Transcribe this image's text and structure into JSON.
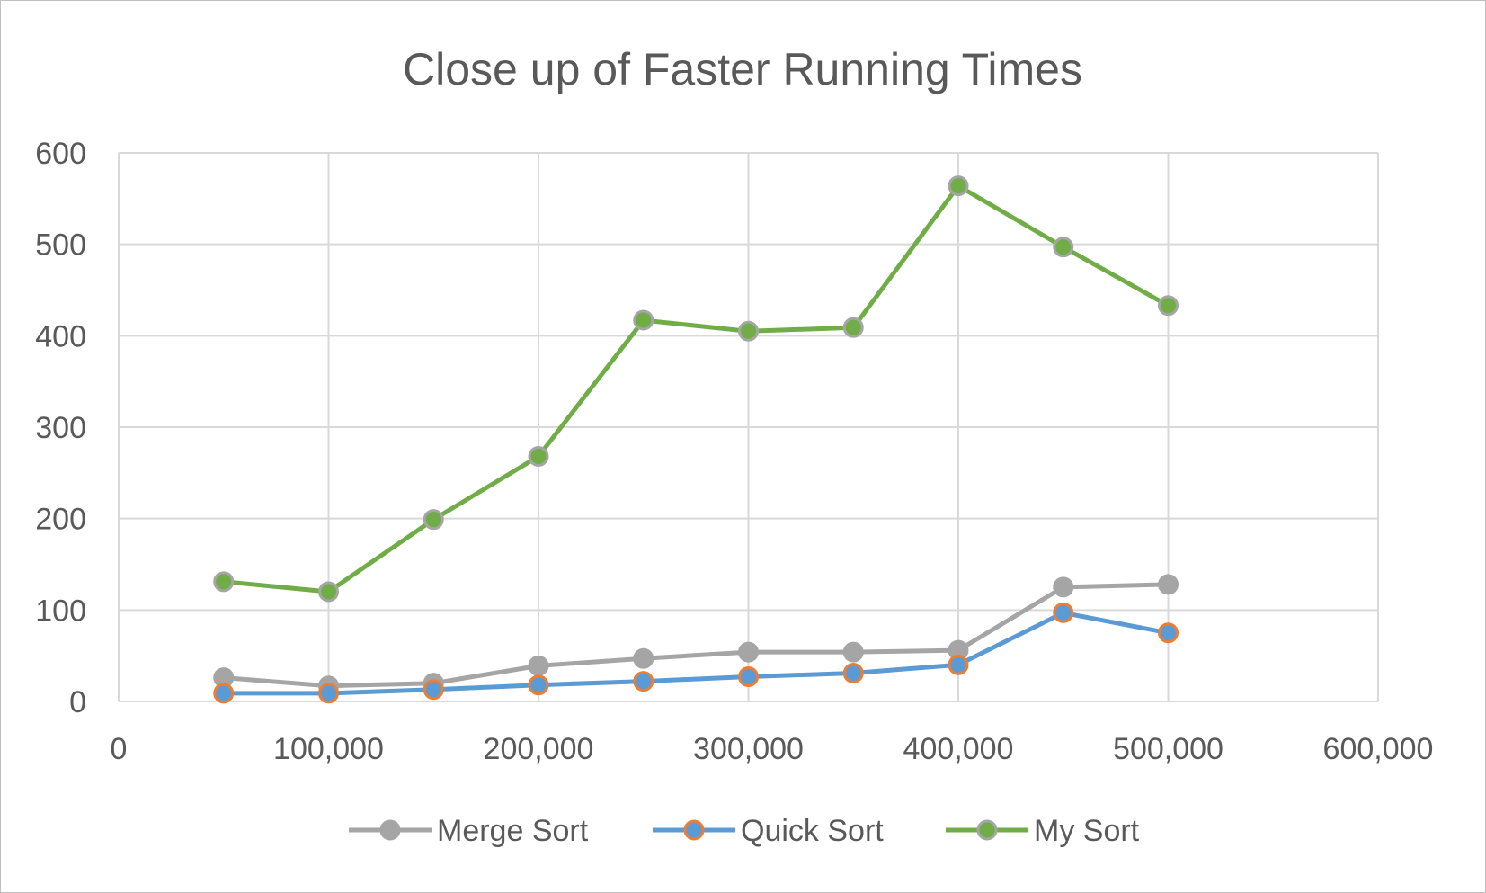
{
  "chart_data": {
    "type": "line",
    "title": "Close up of Faster Running Times",
    "xlabel": "",
    "ylabel": "",
    "xlim": [
      0,
      600000
    ],
    "ylim": [
      0,
      600
    ],
    "x_ticks": [
      0,
      100000,
      200000,
      300000,
      400000,
      500000,
      600000
    ],
    "x_tick_labels": [
      "0",
      "100,000",
      "200,000",
      "300,000",
      "400,000",
      "500,000",
      "600,000"
    ],
    "y_ticks": [
      0,
      100,
      200,
      300,
      400,
      500,
      600
    ],
    "y_tick_labels": [
      "0",
      "100",
      "200",
      "300",
      "400",
      "500",
      "600"
    ],
    "grid": true,
    "legend_position": "bottom",
    "x": [
      50000,
      100000,
      150000,
      200000,
      250000,
      300000,
      350000,
      400000,
      450000,
      500000
    ],
    "series": [
      {
        "name": "Merge Sort",
        "color": "#a5a5a5",
        "marker_fill": "#a5a5a5",
        "marker_edge": "#a5a5a5",
        "values": [
          26,
          17,
          20,
          39,
          47,
          54,
          54,
          56,
          125,
          128
        ]
      },
      {
        "name": "Quick Sort",
        "color": "#5b9bd5",
        "marker_fill": "#5b9bd5",
        "marker_edge": "#ed7d31",
        "values": [
          9,
          9,
          13,
          18,
          22,
          27,
          31,
          40,
          97,
          75
        ]
      },
      {
        "name": "My Sort",
        "color": "#70ad47",
        "marker_fill": "#70ad47",
        "marker_edge": "#a5a5a5",
        "values": [
          131,
          120,
          199,
          268,
          417,
          405,
          409,
          564,
          497,
          433
        ]
      }
    ],
    "colors": {
      "grid": "#d9d9d9",
      "text": "#595959",
      "border": "#bfbfbf"
    }
  }
}
